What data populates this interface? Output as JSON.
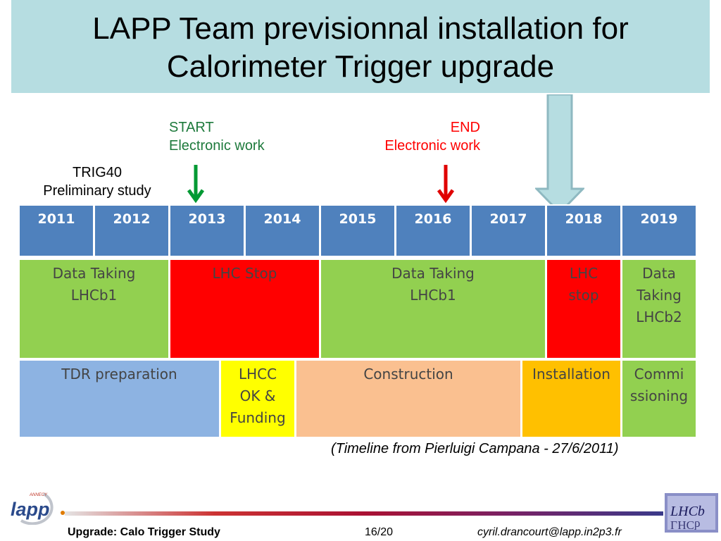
{
  "title": {
    "line1": "LAPP Team previsionnal installation for",
    "line2": "Calorimeter Trigger upgrade"
  },
  "labels": {
    "start_line1": "START",
    "start_line2": "Electronic work",
    "end_line1": "END",
    "end_line2": "Electronic work",
    "trig_line1": "TRIG40",
    "trig_line2": "Preliminary study"
  },
  "colors": {
    "year_header": "#4f81bd",
    "data_taking": "#92d050",
    "lhc_stop": "#ff0000",
    "tdr": "#8db3e2",
    "lhcc": "#ffff00",
    "construction": "#fac090",
    "installation": "#ffc000",
    "start_arrow": "#009933",
    "end_arrow": "#e00000"
  },
  "timeline": {
    "years": [
      "2011",
      "2012",
      "2013",
      "2014",
      "2015",
      "2016",
      "2017",
      "2018",
      "2019"
    ],
    "row1": [
      {
        "label": "Data Taking\nLHCb1"
      },
      {
        "label": "LHC Stop"
      },
      {
        "label": "Data Taking\nLHCb1"
      },
      {
        "label": "LHC\nstop"
      },
      {
        "label": "Data\nTaking\nLHCb2"
      }
    ],
    "row2": [
      {
        "label": "TDR preparation"
      },
      {
        "label": "LHCC\nOK &\nFunding"
      },
      {
        "label": "Construction"
      },
      {
        "label": "Installation"
      },
      {
        "label": "Commi\nssioning"
      }
    ]
  },
  "credit": "(Timeline from Pierluigi Campana - 27/6/2011)",
  "footer": {
    "left": "Upgrade: Calo Trigger Study",
    "page": "16/20",
    "email": "cyril.drancourt@lapp.in2p3.fr"
  },
  "logos": {
    "lapp_small": "ANNECY",
    "lapp_main": "lapp",
    "lhcb": "LHCb"
  }
}
